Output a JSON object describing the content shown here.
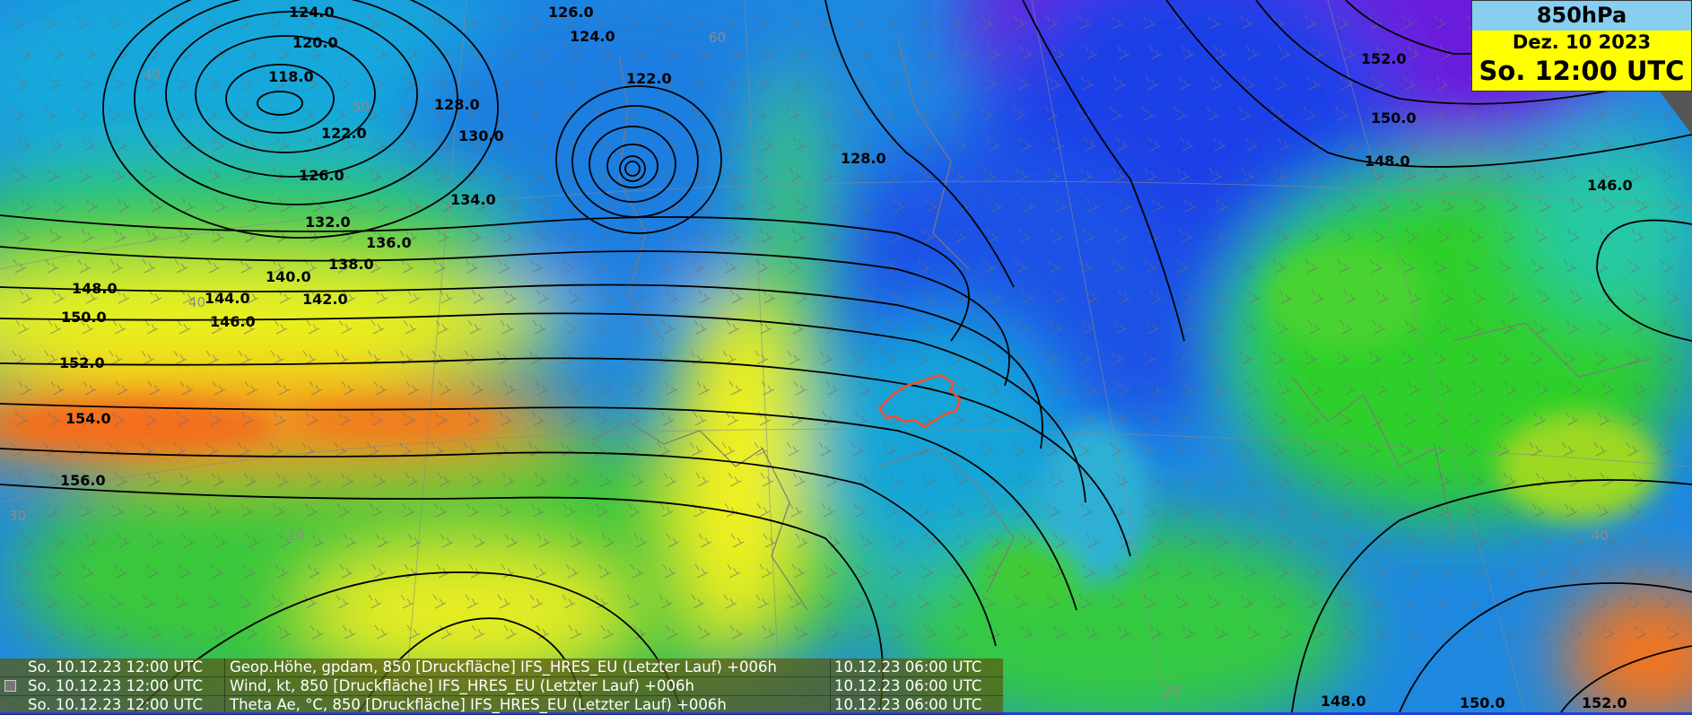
{
  "header": {
    "level": "850hPa",
    "date": "Dez. 10 2023",
    "time": "So. 12:00 UTC"
  },
  "legend": [
    {
      "valid_time": "So. 10.12.23 12:00 UTC",
      "parameter": "Geop.Höhe, gpdam, 850 [Druckfläche] IFS_HRES_EU (Letzter Lauf) +006h",
      "run": "10.12.23 06:00 UTC",
      "has_swatch": false
    },
    {
      "valid_time": "So. 10.12.23 12:00 UTC",
      "parameter": "Wind, kt, 850 [Druckfläche] IFS_HRES_EU (Letzter Lauf) +006h",
      "run": "10.12.23 06:00 UTC",
      "has_swatch": true
    },
    {
      "valid_time": "So. 10.12.23 12:00 UTC",
      "parameter": "Theta Ae, °C, 850 [Druckfläche] IFS_HRES_EU (Letzter Lauf) +006h",
      "run": "10.12.23 06:00 UTC",
      "has_swatch": false
    }
  ],
  "contour_labels": [
    "124.0",
    "120.0",
    "118.0",
    "122.0",
    "126.0",
    "128.0",
    "130.0",
    "132.0",
    "134.0",
    "136.0",
    "138.0",
    "140.0",
    "142.0",
    "144.0",
    "146.0",
    "148.0",
    "150.0",
    "152.0",
    "154.0",
    "156.0",
    "126.0",
    "124.0",
    "122.0",
    "128.0",
    "152.0",
    "150.0",
    "148.0",
    "146.0",
    "148.0",
    "150.0",
    "152.0"
  ],
  "graticule_labels": [
    "40",
    "50",
    "60",
    "40",
    "30",
    "20",
    "40",
    "20"
  ],
  "colors": {
    "theta_cold": "#6a1bdc",
    "theta_blue": "#1a4fe6",
    "theta_cyan": "#1ab8d6",
    "theta_green": "#2fcf2a",
    "theta_yellow": "#f6f51e",
    "theta_orange": "#f58a1c",
    "switzerland_outline": "#ff4a2a",
    "contour": "#000000"
  }
}
